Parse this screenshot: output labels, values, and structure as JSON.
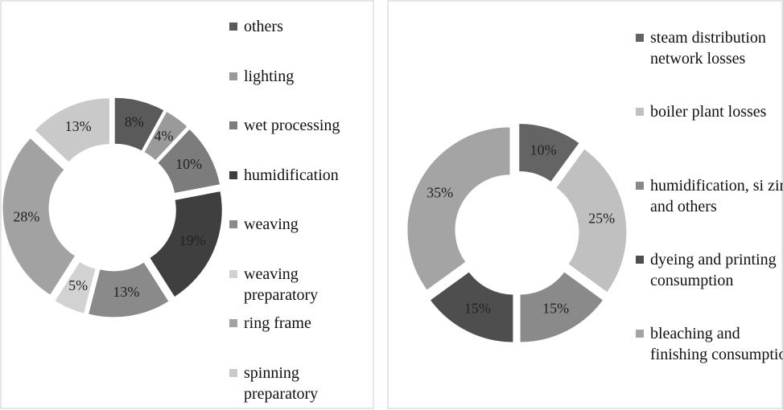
{
  "chart_data": [
    {
      "type": "donut",
      "categories": [
        "others",
        "lighting",
        "wet processing",
        "humidification",
        "weaving",
        "weaving preparatory",
        "ring frame",
        "spinning preparatory"
      ],
      "values": [
        8,
        4,
        10,
        19,
        13,
        5,
        28,
        13
      ],
      "value_labels": [
        "8%",
        "4%",
        "10%",
        "19%",
        "13%",
        "5%",
        "28%",
        "13%"
      ],
      "colors": [
        "#5a5a5a",
        "#9a9a9a",
        "#7c7c7c",
        "#3f3f3f",
        "#8a8a8a",
        "#d2d2d2",
        "#a2a2a2",
        "#c9c9c9"
      ]
    },
    {
      "type": "donut",
      "categories": [
        "steam distribution network losses",
        "boiler plant losses",
        "humidification, si zing and others",
        "dyeing and printing consumption",
        "bleaching and finishing consumption"
      ],
      "values": [
        10,
        25,
        15,
        15,
        35
      ],
      "value_labels": [
        "10%",
        "25%",
        "15%",
        "15%",
        "35%"
      ],
      "colors": [
        "#646464",
        "#c0c0c0",
        "#8a8a8a",
        "#4e4e4e",
        "#a4a4a4"
      ]
    }
  ]
}
